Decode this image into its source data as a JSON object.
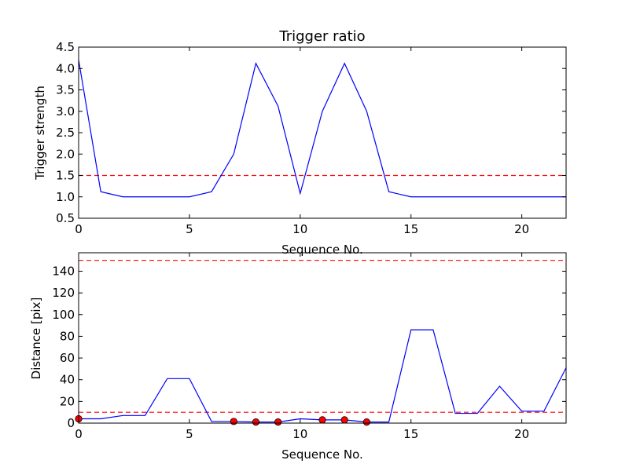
{
  "chart_data": [
    {
      "type": "line",
      "title": "Trigger ratio",
      "xlabel": "Sequence No.",
      "ylabel": "Trigger strength",
      "xlim": [
        0,
        22
      ],
      "ylim": [
        0.5,
        4.5
      ],
      "xticks": [
        0,
        5,
        10,
        15,
        20
      ],
      "yticks": [
        0.5,
        1.0,
        1.5,
        2.0,
        2.5,
        3.0,
        3.5,
        4.0,
        4.5
      ],
      "ytick_decimals": 1,
      "line_color": "#0000ff",
      "x": [
        0,
        1,
        2,
        3,
        4,
        5,
        6,
        7,
        8,
        9,
        10,
        11,
        12,
        13,
        14,
        15,
        16,
        17,
        18,
        19,
        20,
        21,
        22
      ],
      "values": [
        4.2,
        1.12,
        1.0,
        1.0,
        1.0,
        1.0,
        1.12,
        2.0,
        4.12,
        3.12,
        1.08,
        3.0,
        4.12,
        3.0,
        1.12,
        1.0,
        1.0,
        1.0,
        1.0,
        1.0,
        1.0,
        1.0,
        1.0
      ],
      "thresholds": [
        1.5
      ],
      "threshold_color": "#ff0000",
      "markers": {
        "x": [],
        "y": []
      },
      "grid": false
    },
    {
      "type": "line",
      "title": "",
      "xlabel": "Sequence No.",
      "ylabel": "Distance [pix]",
      "xlim": [
        0,
        22
      ],
      "ylim": [
        0,
        157
      ],
      "xticks": [
        0,
        5,
        10,
        15,
        20
      ],
      "yticks": [
        0,
        20,
        40,
        60,
        80,
        100,
        120,
        140
      ],
      "ytick_decimals": 0,
      "line_color": "#0000ff",
      "x": [
        0,
        1,
        2,
        3,
        4,
        5,
        6,
        7,
        8,
        9,
        10,
        11,
        12,
        13,
        14,
        15,
        16,
        17,
        18,
        19,
        20,
        21,
        22
      ],
      "values": [
        4,
        4,
        7,
        7,
        41,
        41,
        1.5,
        1.5,
        1,
        1,
        4,
        3,
        3,
        1,
        1,
        86,
        86,
        9,
        9,
        34,
        11,
        11,
        51
      ],
      "thresholds": [
        10,
        150
      ],
      "threshold_color": "#ff0000",
      "markers": {
        "color": "#ff0000",
        "x": [
          0,
          7,
          8,
          9,
          11,
          12,
          13
        ],
        "y": [
          4,
          1.5,
          1,
          1,
          3,
          3,
          1
        ]
      },
      "grid": false
    }
  ]
}
